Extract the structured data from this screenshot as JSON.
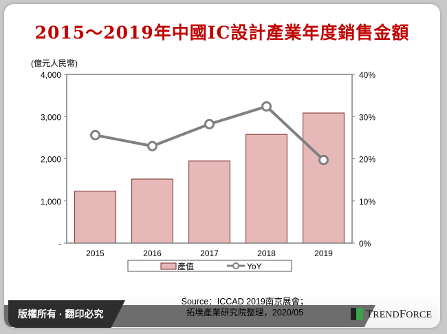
{
  "chart_data": {
    "type": "bar+line",
    "title": "2015～2019年中國IC設計產業年度銷售金額",
    "ylabel": "(億元人民幣)",
    "categories": [
      "2015",
      "2016",
      "2017",
      "2018",
      "2019"
    ],
    "series": [
      {
        "name": "產值",
        "type": "bar",
        "axis": "left",
        "values": [
          1234,
          1518,
          1946,
          2577,
          3085
        ],
        "color": "#e6b9b8"
      },
      {
        "name": "YoY",
        "type": "line",
        "axis": "right",
        "values": [
          25.6,
          23.0,
          28.2,
          32.4,
          19.7
        ],
        "color": "#808080"
      }
    ],
    "ylim": [
      0,
      4000
    ],
    "y2lim": [
      0,
      40
    ],
    "yticks": [
      "-",
      "1,000",
      "2,000",
      "3,000",
      "4,000"
    ],
    "y2ticks": [
      "0%",
      "10%",
      "20%",
      "30%",
      "40%"
    ],
    "legend": "bottom"
  },
  "footer": {
    "copyright": "版權所有 · 翻印必究",
    "source_line1": "Source：ICCAD 2019南京展會；",
    "source_line2": "拓墣產業研究院整理，2020/05",
    "logo": "TRENDFORCE"
  }
}
